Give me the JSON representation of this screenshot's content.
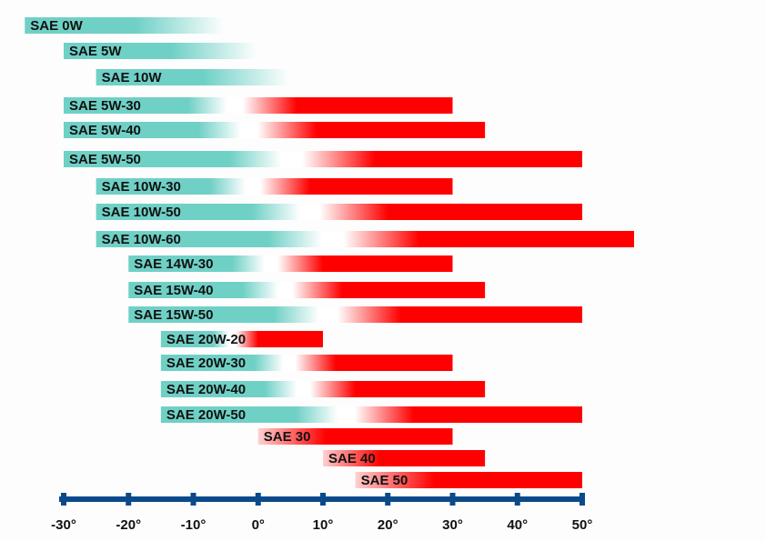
{
  "chart_data": {
    "type": "range-bar",
    "categories": [
      "SAE 0W",
      "SAE 5W",
      "SAE 10W",
      "SAE 5W-30",
      "SAE 5W-40",
      "SAE 5W-50",
      "SAE 10W-30",
      "SAE 10W-50",
      "SAE 10W-60",
      "SAE 14W-30",
      "SAE 15W-40",
      "SAE 15W-50",
      "SAE 20W-20",
      "SAE 20W-30",
      "SAE 20W-40",
      "SAE 20W-50",
      "SAE 30",
      "SAE 40",
      "SAE 50"
    ],
    "low": [
      -36,
      -30,
      -25,
      -30,
      -30,
      -30,
      -25,
      -25,
      -25,
      -20,
      -20,
      -20,
      -15,
      -15,
      -15,
      -15,
      0,
      10,
      15
    ],
    "high": [
      -5,
      0,
      5,
      30,
      35,
      50,
      30,
      50,
      58,
      30,
      35,
      50,
      10,
      30,
      35,
      50,
      30,
      35,
      50
    ],
    "bar_colors": [
      [
        "#6fd0c6",
        "#ffffff"
      ],
      [
        "#6fd0c6",
        "#ffffff"
      ],
      [
        "#6fd0c6",
        "#ffffff"
      ],
      [
        "#6fd0c6",
        "#ffffff",
        "#ff0000"
      ],
      [
        "#6fd0c6",
        "#ffffff",
        "#ff0000"
      ],
      [
        "#6fd0c6",
        "#ffffff",
        "#ff0000"
      ],
      [
        "#6fd0c6",
        "#ffffff",
        "#ff0000"
      ],
      [
        "#6fd0c6",
        "#ffffff",
        "#ff0000"
      ],
      [
        "#6fd0c6",
        "#ffffff",
        "#ff0000"
      ],
      [
        "#6fd0c6",
        "#ffffff",
        "#ff0000"
      ],
      [
        "#6fd0c6",
        "#ffffff",
        "#ff0000"
      ],
      [
        "#6fd0c6",
        "#ffffff",
        "#ff0000"
      ],
      [
        "#6fd0c6",
        "#ffffff",
        "#ff0000"
      ],
      [
        "#6fd0c6",
        "#ffffff",
        "#ff0000"
      ],
      [
        "#6fd0c6",
        "#ffffff",
        "#ff0000"
      ],
      [
        "#6fd0c6",
        "#ffffff",
        "#ff0000"
      ],
      [
        "#ffd0d0",
        "#ff0000"
      ],
      [
        "#ffd0d0",
        "#ff0000"
      ],
      [
        "#ffd0d0",
        "#ff0000"
      ]
    ],
    "axis_color": "#0b4a8a",
    "xlim": [
      -30,
      50
    ],
    "xticks": [
      {
        "value": -30,
        "label": "-30°"
      },
      {
        "value": -20,
        "label": "-20°"
      },
      {
        "value": -10,
        "label": "-10°"
      },
      {
        "value": 0,
        "label": "0°"
      },
      {
        "value": 10,
        "label": "10°"
      },
      {
        "value": 20,
        "label": "20°"
      },
      {
        "value": 30,
        "label": "30°"
      },
      {
        "value": 40,
        "label": "40°"
      },
      {
        "value": 50,
        "label": "50°"
      }
    ]
  }
}
